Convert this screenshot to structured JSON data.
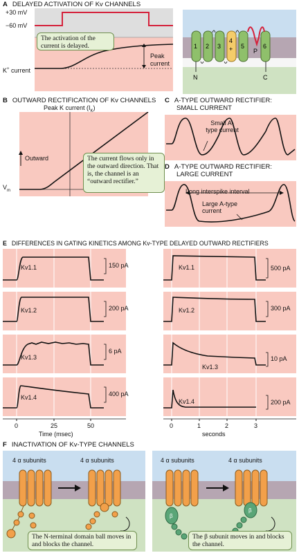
{
  "panelA": {
    "letter": "A",
    "title": "DELAYED ACTIVATION OF Kv CHANNELS",
    "v_high": "+30 mV",
    "v_low": "−60 mV",
    "current_label_prefix": "K",
    "current_label_sup": "+",
    "current_label_suffix": " current",
    "note": "The activation of the current is delayed.",
    "peak_label": "Peak current",
    "segments": [
      "1",
      "2",
      "3",
      "4",
      "+",
      "5",
      "P",
      "6"
    ],
    "n_label": "N",
    "c_label": "C"
  },
  "panelB": {
    "letter": "B",
    "title": "OUTWARD RECTIFICATION OF Kv CHANNELS",
    "axis_title_prefix": "Peak K current (I",
    "axis_title_sub": "K",
    "axis_title_suffix": ")",
    "outward": "Outward",
    "vm": "V",
    "vm_sub": "m",
    "note": "The current flows only in the outward direction. That is, the channel is an “outward rectifier.”"
  },
  "panelC": {
    "letter": "C",
    "title_line1": "A-TYPE OUTWARD RECTIFIER:",
    "title_line2": "SMALL CURRENT",
    "annotation": "Small A-type current"
  },
  "panelD": {
    "letter": "D",
    "title_line1": "A-TYPE OUTWARD RECTIFIER:",
    "title_line2": "LARGE CURRENT",
    "interval": "Long interspike interval",
    "annotation": "Large A-type current"
  },
  "panelE": {
    "letter": "E",
    "title": "DIFFERENCES IN GATING KINETICS AMONG Kv-TYPE DELAYED OUTWARD RECTIFIERS",
    "left": {
      "traces": [
        {
          "name": "Kv1.1",
          "scale": "150 pA"
        },
        {
          "name": "Kv1.2",
          "scale": "200 pA"
        },
        {
          "name": "Kv1.3",
          "scale": "6 pA"
        },
        {
          "name": "Kv1.4",
          "scale": "400 pA"
        }
      ],
      "ticks": [
        "0",
        "25",
        "50"
      ],
      "xlabel": "Time (msec)"
    },
    "right": {
      "traces": [
        {
          "name": "Kv1.1",
          "scale": "500 pA"
        },
        {
          "name": "Kv1.2",
          "scale": "300 pA"
        },
        {
          "name": "Kv1.3",
          "scale": "10 pA"
        },
        {
          "name": "Kv1.4",
          "scale": "200 pA"
        }
      ],
      "ticks": [
        "0",
        "1",
        "2",
        "3"
      ],
      "xlabel": "seconds"
    }
  },
  "panelF": {
    "letter": "F",
    "title": "INACTIVATION OF Kv-TYPE CHANNELS",
    "subunits": "4 α subunits",
    "beta": "β",
    "note_left": "The N-terminal domain ball moves in and blocks the channel.",
    "note_right": "The β subunit moves in and blocks the channel."
  },
  "colors": {
    "pink": "#f9c9c0",
    "voltage_red": "#d5203a",
    "membrane": "#b6a6b2",
    "channel_orange": "#f2a04a",
    "beta_green": "#5aa577",
    "note_green": "#e6f1d6"
  }
}
